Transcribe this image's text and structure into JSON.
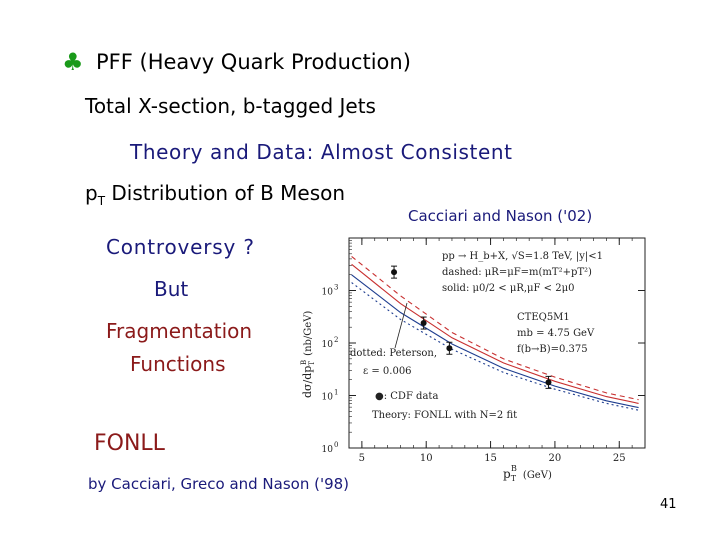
{
  "slide": {
    "bullet_icon": "club-icon",
    "bullet_glyph": "♣",
    "title": "PFF (Heavy Quark Production)",
    "line2": "Total X-section, b-tagged Jets",
    "line3": "Theory and Data:  Almost Consistent",
    "line4_pre": "p",
    "line4_sub": "T",
    "line4_post": " Distribution of B Meson",
    "cite": "Cacciari and Nason ('02)",
    "controversy": "Controversy ?",
    "but": "But",
    "frag1": "Fragmentation",
    "frag2": "Functions",
    "fonll": "FONLL",
    "byline": "by Cacciari, Greco and Nason ('98)",
    "page_number": "41"
  },
  "chart_data": {
    "type": "line",
    "xlabel": "p",
    "xlabel_sup": "B",
    "xlabel_sub": "T",
    "xlabel_unit": "(GeV)",
    "ylabel": "dσ/dp",
    "ylabel_sup": "B",
    "ylabel_sub": "T",
    "ylabel_unit": "(nb/GeV)",
    "x_ticks": [
      "5",
      "10",
      "15",
      "20",
      "25"
    ],
    "y_ticks": [
      "10",
      "10",
      "10",
      "10"
    ],
    "y_tick_exps": [
      "3",
      "2",
      "1",
      "0"
    ],
    "xlim": [
      4,
      27
    ],
    "ylim_log10": [
      0,
      4
    ],
    "legend_lines": [
      "pp → H_b+X, √S=1.8 TeV, |y|<1",
      "dashed: μR=μF=m(mT²+pT²)",
      "solid: μ0/2 < μR,μF < 2μ0"
    ],
    "annotation_cteq": [
      "CTEQ5M1",
      "mb = 4.75 GeV",
      "f(b→B)=0.375"
    ],
    "annotation_peterson": [
      "dotted: Peterson,",
      "ε = 0.006"
    ],
    "annotation_bottom": [
      "●: CDF data",
      "Theory: FONLL with N=2 fit"
    ],
    "data_points": [
      {
        "x": 7.5,
        "y": 3.35
      },
      {
        "x": 9.8,
        "y": 2.38
      },
      {
        "x": 11.8,
        "y": 1.9
      },
      {
        "x": 19.5,
        "y": 1.25
      }
    ],
    "series": [
      {
        "x": [
          4.2,
          8,
          12,
          16,
          20,
          24,
          26.5
        ],
        "y": [
          3.65,
          2.9,
          2.2,
          1.7,
          1.35,
          1.05,
          0.92
        ],
        "color": "#c83030",
        "dash": "5,4"
      },
      {
        "x": [
          4.2,
          8,
          12,
          16,
          20,
          24,
          26.5
        ],
        "y": [
          3.5,
          2.75,
          2.1,
          1.62,
          1.27,
          0.98,
          0.85
        ],
        "color": "#c83030",
        "dash": ""
      },
      {
        "x": [
          4.2,
          8,
          12,
          16,
          20,
          24,
          26.5
        ],
        "y": [
          3.3,
          2.58,
          1.98,
          1.52,
          1.18,
          0.9,
          0.77
        ],
        "color": "#1e3d8f",
        "dash": ""
      },
      {
        "x": [
          4.2,
          8,
          12,
          16,
          20,
          24,
          26.5
        ],
        "y": [
          3.15,
          2.45,
          1.88,
          1.44,
          1.12,
          0.85,
          0.72
        ],
        "color": "#1e3d8f",
        "dash": "2,3"
      }
    ]
  }
}
